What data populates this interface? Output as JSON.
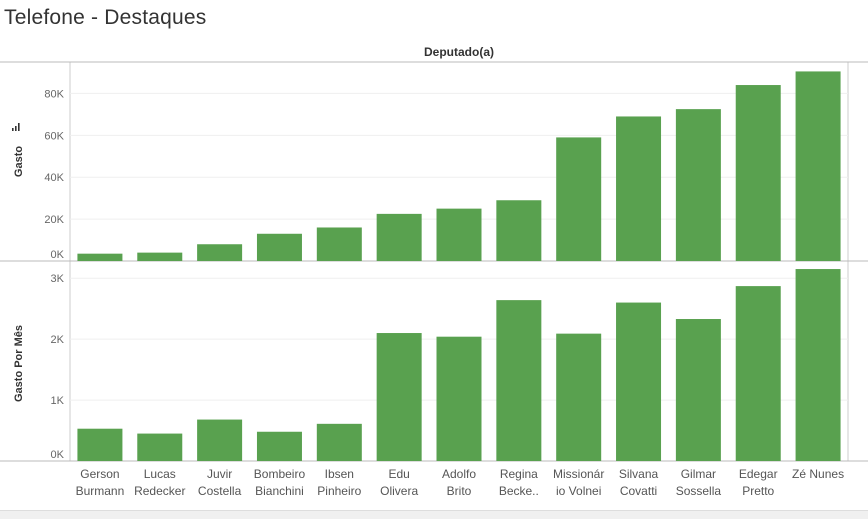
{
  "page": {
    "title": "Telefone - Destaques"
  },
  "column_header": "Deputado(a)",
  "chart_data": [
    {
      "type": "bar",
      "ylabel": "Gasto",
      "yticks": [
        0,
        20000,
        40000,
        60000,
        80000
      ],
      "ytick_labels": [
        "0K",
        "20K",
        "40K",
        "60K",
        "80K"
      ],
      "ylim": [
        0,
        95000
      ],
      "color": "#59a14f",
      "categories": [
        [
          "Gerson",
          "Burmann"
        ],
        [
          "Lucas",
          "Redecker"
        ],
        [
          "Juvir",
          "Costella"
        ],
        [
          "Bombeiro",
          "Bianchini"
        ],
        [
          "Ibsen",
          "Pinheiro"
        ],
        [
          "Edu",
          "Olivera"
        ],
        [
          "Adolfo",
          "Brito"
        ],
        [
          "Regina",
          "Becke.."
        ],
        [
          "Missionár",
          "io Volnei"
        ],
        [
          "Silvana",
          "Covatti"
        ],
        [
          "Gilmar",
          "Sossella"
        ],
        [
          "Edegar",
          "Pretto"
        ],
        [
          "Zé Nunes"
        ]
      ],
      "values": [
        3500,
        4000,
        8000,
        13000,
        16000,
        22500,
        25000,
        29000,
        59000,
        69000,
        72500,
        84000,
        90500
      ]
    },
    {
      "type": "bar",
      "ylabel": "Gasto Por Mês",
      "yticks": [
        0,
        1000,
        2000,
        3000
      ],
      "ytick_labels": [
        "0K",
        "1K",
        "2K",
        "3K"
      ],
      "ylim": [
        0,
        3200
      ],
      "color": "#59a14f",
      "values": [
        530,
        450,
        680,
        480,
        610,
        2100,
        2040,
        2640,
        2090,
        2600,
        2330,
        2870,
        3150
      ]
    }
  ]
}
